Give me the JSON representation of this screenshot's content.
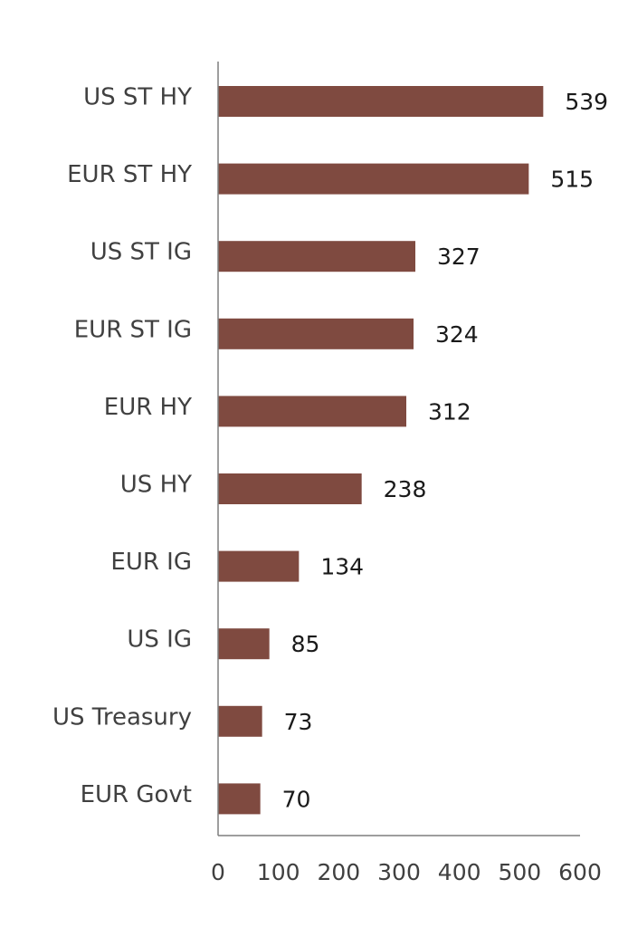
{
  "chart_data": {
    "type": "bar",
    "orientation": "horizontal",
    "title": "",
    "xlabel": "",
    "ylabel": "",
    "categories": [
      "US ST HY",
      "EUR ST HY",
      "US ST IG",
      "EUR ST IG",
      "EUR HY",
      "US HY",
      "EUR IG",
      "US IG",
      "US Treasury",
      "EUR Govt"
    ],
    "values": [
      539,
      515,
      327,
      324,
      312,
      238,
      134,
      85,
      73,
      70
    ],
    "data_labels": [
      "539",
      "515",
      "327",
      "324",
      "312",
      "238",
      "134",
      "85",
      "73",
      "70"
    ],
    "xlim": [
      0,
      600
    ],
    "x_ticks": [
      0,
      100,
      200,
      300,
      400,
      500,
      600
    ],
    "x_tick_labels": [
      "0",
      "100",
      "200",
      "300",
      "400",
      "500",
      "600"
    ],
    "grid": false,
    "legend": "none",
    "bar_color": "#7f4a40"
  }
}
